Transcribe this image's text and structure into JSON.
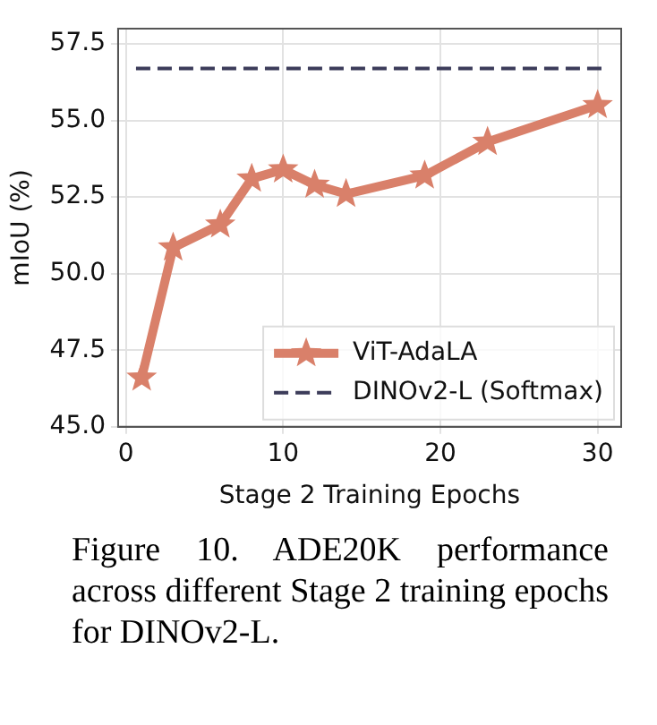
{
  "chart_data": {
    "type": "line",
    "xlabel": "Stage 2 Training Epochs",
    "ylabel": "mIoU (%)",
    "x": [
      1,
      3,
      6,
      8,
      10,
      12,
      14,
      19,
      23,
      30
    ],
    "series": [
      {
        "name": "ViT-AdaLA",
        "color": "#d9806a",
        "values": [
          46.6,
          50.85,
          51.6,
          53.1,
          53.4,
          52.9,
          52.6,
          53.2,
          54.3,
          55.5
        ]
      }
    ],
    "ref_lines": [
      {
        "axis": "y",
        "value": 56.7,
        "label": "DINOv2-L (Softmax)",
        "color": "#3c3c5a",
        "line_style": "dashed"
      }
    ],
    "xlim": [
      -0.5,
      31.5
    ],
    "xticks": [
      0,
      10,
      20,
      30
    ],
    "ylim": [
      45,
      58
    ],
    "yticks": [
      {
        "value": 45,
        "label": "45.0"
      },
      {
        "value": 47.5,
        "label": "47.5"
      },
      {
        "value": 50,
        "label": "50.0"
      },
      {
        "value": 52.5,
        "label": "52.5"
      },
      {
        "value": 55,
        "label": "55.0"
      },
      {
        "value": 57.5,
        "label": "57.5"
      }
    ],
    "grid": true,
    "legend": "bottom right",
    "marker": "star",
    "line_style": "solid",
    "annotations": [
      "Figure 10. ADE20K performance across different Stage 2 training epochs for DINOv2-L."
    ]
  }
}
